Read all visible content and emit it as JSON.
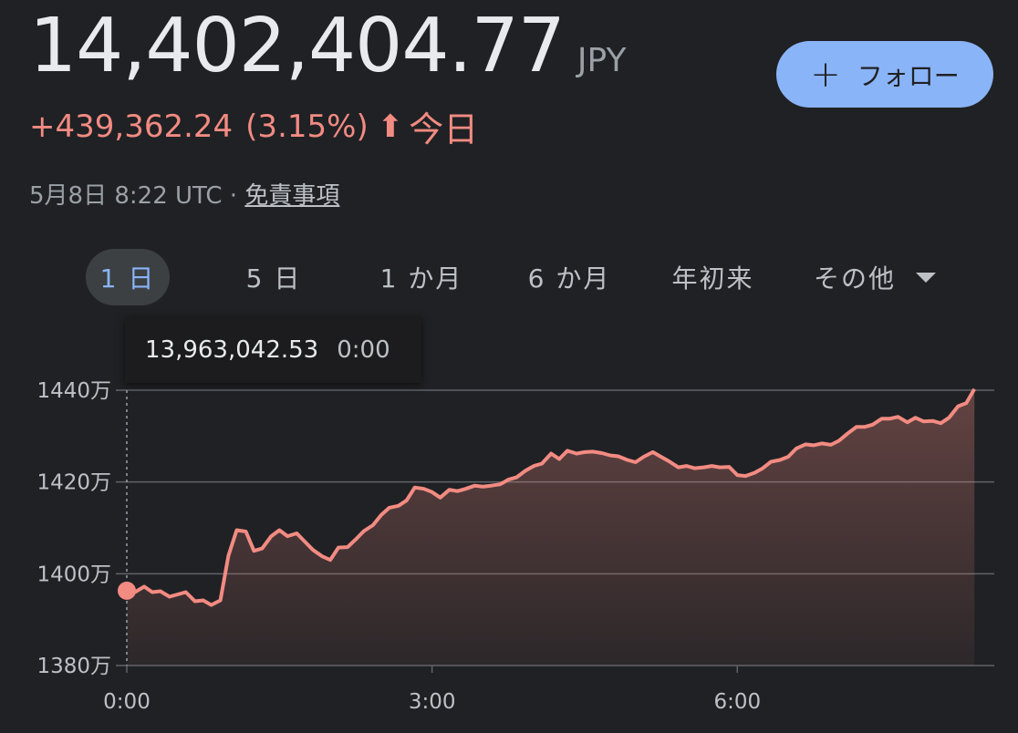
{
  "quote": {
    "price": "14,402,404.77",
    "currency": "JPY",
    "change": "+439,362.24",
    "change_pct": "(3.15%)",
    "change_arrow": "⬆",
    "period": "今日",
    "timestamp": "5月8日 8:22 UTC",
    "separator": " · ",
    "disclaimer": "免責事項"
  },
  "follow_button": {
    "plus": "+",
    "label": "フォロー"
  },
  "tabs": [
    {
      "label": "1 日",
      "active": true
    },
    {
      "label": "5 日"
    },
    {
      "label": "1 か月"
    },
    {
      "label": "6 か月"
    },
    {
      "label": "年初来"
    },
    {
      "label": "その他"
    }
  ],
  "tooltip": {
    "value": "13,963,042.53",
    "time": "0:00"
  },
  "colors": {
    "background": "#202124",
    "line": "#f28b82",
    "accent": "#8ab4f8",
    "grid": "#5f6368"
  },
  "chart_data": {
    "type": "area",
    "y_tick_labels": [
      "1440万",
      "1420万",
      "1400万",
      "1380万"
    ],
    "y_ticks": [
      14400000,
      14200000,
      14000000,
      13800000
    ],
    "x_tick_labels": [
      "0:00",
      "3:00",
      "6:00"
    ],
    "x_ticks": [
      0,
      3,
      6
    ],
    "xlim": [
      0,
      8.4
    ],
    "ylim": [
      13800000,
      14400000
    ],
    "highlight_point": {
      "x": 0,
      "y": 13963042.53
    },
    "series": [
      {
        "points": [
          [
            0.0,
            13963042
          ],
          [
            0.08,
            13960000
          ],
          [
            0.17,
            13972000
          ],
          [
            0.25,
            13960000
          ],
          [
            0.33,
            13962000
          ],
          [
            0.42,
            13950000
          ],
          [
            0.5,
            13955000
          ],
          [
            0.58,
            13960000
          ],
          [
            0.67,
            13940000
          ],
          [
            0.75,
            13942000
          ],
          [
            0.83,
            13932000
          ],
          [
            0.92,
            13942000
          ],
          [
            1.0,
            14040000
          ],
          [
            1.08,
            14095000
          ],
          [
            1.17,
            14092000
          ],
          [
            1.25,
            14050000
          ],
          [
            1.33,
            14055000
          ],
          [
            1.42,
            14082000
          ],
          [
            1.5,
            14095000
          ],
          [
            1.58,
            14082000
          ],
          [
            1.67,
            14088000
          ],
          [
            1.75,
            14070000
          ],
          [
            1.83,
            14052000
          ],
          [
            1.92,
            14038000
          ],
          [
            2.0,
            14030000
          ],
          [
            2.08,
            14057000
          ],
          [
            2.17,
            14058000
          ],
          [
            2.25,
            14075000
          ],
          [
            2.33,
            14093000
          ],
          [
            2.42,
            14106000
          ],
          [
            2.5,
            14128000
          ],
          [
            2.58,
            14144000
          ],
          [
            2.67,
            14148000
          ],
          [
            2.75,
            14160000
          ],
          [
            2.83,
            14188000
          ],
          [
            2.92,
            14185000
          ],
          [
            3.0,
            14178000
          ],
          [
            3.08,
            14166000
          ],
          [
            3.17,
            14183000
          ],
          [
            3.25,
            14180000
          ],
          [
            3.33,
            14185000
          ],
          [
            3.42,
            14192000
          ],
          [
            3.5,
            14190000
          ],
          [
            3.58,
            14192000
          ],
          [
            3.67,
            14195000
          ],
          [
            3.75,
            14205000
          ],
          [
            3.83,
            14210000
          ],
          [
            3.92,
            14225000
          ],
          [
            4.0,
            14235000
          ],
          [
            4.08,
            14240000
          ],
          [
            4.17,
            14262000
          ],
          [
            4.25,
            14250000
          ],
          [
            4.33,
            14268000
          ],
          [
            4.42,
            14262000
          ],
          [
            4.5,
            14265000
          ],
          [
            4.58,
            14266000
          ],
          [
            4.67,
            14263000
          ],
          [
            4.75,
            14258000
          ],
          [
            4.83,
            14256000
          ],
          [
            4.92,
            14248000
          ],
          [
            5.0,
            14243000
          ],
          [
            5.08,
            14255000
          ],
          [
            5.17,
            14265000
          ],
          [
            5.25,
            14255000
          ],
          [
            5.33,
            14245000
          ],
          [
            5.42,
            14232000
          ],
          [
            5.5,
            14235000
          ],
          [
            5.58,
            14230000
          ],
          [
            5.67,
            14232000
          ],
          [
            5.75,
            14235000
          ],
          [
            5.83,
            14232000
          ],
          [
            5.92,
            14233000
          ],
          [
            6.0,
            14215000
          ],
          [
            6.08,
            14213000
          ],
          [
            6.17,
            14220000
          ],
          [
            6.25,
            14230000
          ],
          [
            6.33,
            14244000
          ],
          [
            6.42,
            14248000
          ],
          [
            6.5,
            14255000
          ],
          [
            6.58,
            14273000
          ],
          [
            6.67,
            14282000
          ],
          [
            6.75,
            14280000
          ],
          [
            6.83,
            14284000
          ],
          [
            6.92,
            14281000
          ],
          [
            7.0,
            14290000
          ],
          [
            7.08,
            14305000
          ],
          [
            7.17,
            14320000
          ],
          [
            7.25,
            14320000
          ],
          [
            7.33,
            14325000
          ],
          [
            7.42,
            14338000
          ],
          [
            7.5,
            14338000
          ],
          [
            7.58,
            14342000
          ],
          [
            7.67,
            14330000
          ],
          [
            7.75,
            14340000
          ],
          [
            7.83,
            14332000
          ],
          [
            7.92,
            14333000
          ],
          [
            8.0,
            14328000
          ],
          [
            8.08,
            14340000
          ],
          [
            8.17,
            14365000
          ],
          [
            8.25,
            14372000
          ],
          [
            8.33,
            14402404
          ]
        ]
      }
    ]
  }
}
